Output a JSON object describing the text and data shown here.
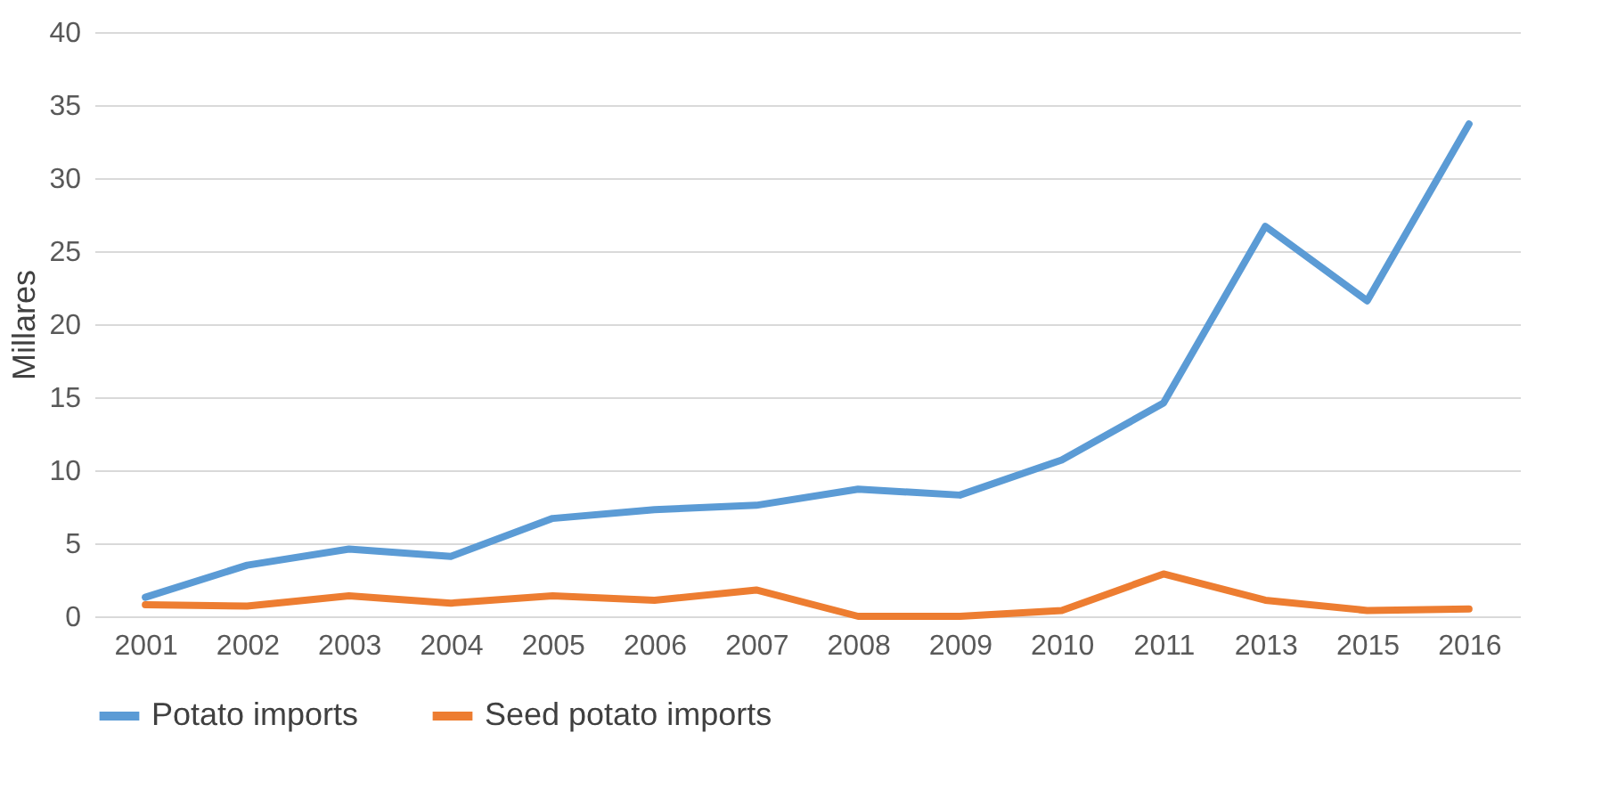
{
  "chart_data": {
    "type": "line",
    "ylabel": "Millares",
    "categories": [
      "2001",
      "2002",
      "2003",
      "2004",
      "2005",
      "2006",
      "2007",
      "2008",
      "2009",
      "2010",
      "2011",
      "2013",
      "2015",
      "2016"
    ],
    "series": [
      {
        "name": "Potato imports",
        "color": "#5b9bd5",
        "values": [
          1.3,
          3.5,
          4.6,
          4.1,
          6.7,
          7.3,
          7.6,
          8.7,
          8.3,
          10.7,
          14.6,
          26.7,
          21.6,
          33.7
        ]
      },
      {
        "name": "Seed potato imports",
        "color": "#ed7d31",
        "values": [
          0.8,
          0.7,
          1.4,
          0.9,
          1.4,
          1.1,
          1.8,
          0,
          0,
          0.4,
          2.9,
          1.1,
          0.4,
          0.5
        ]
      }
    ],
    "ylim": [
      0,
      40
    ],
    "yticks": [
      0,
      5,
      10,
      15,
      20,
      25,
      30,
      35,
      40
    ],
    "grid": "y",
    "legend": "bottom",
    "marker": "none",
    "line_style": "solid"
  }
}
